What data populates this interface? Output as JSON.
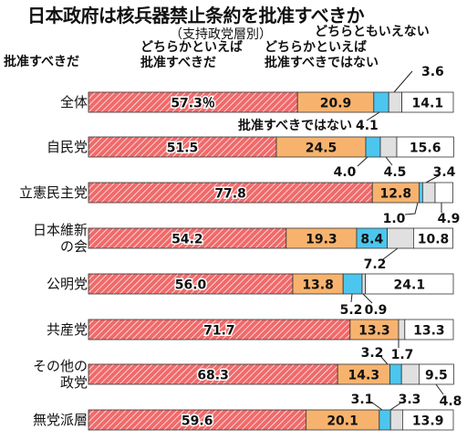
{
  "chart_data": {
    "type": "bar",
    "stacked": true,
    "orientation": "horizontal",
    "title": "日本政府は核兵器禁止条約を批准すべきか",
    "subtitle": "（支持政党層別）",
    "series": [
      {
        "name": "批准すべきだ",
        "color": "#f06a6a",
        "pattern": "hatch",
        "values": [
          57.3,
          51.5,
          77.8,
          54.2,
          56.0,
          71.7,
          68.3,
          59.6
        ],
        "labels": [
          "57.3％",
          "51.5",
          "77.8",
          "54.2",
          "56.0",
          "71.7",
          "68.3",
          "59.6"
        ]
      },
      {
        "name": "どちらかといえば批准すべきだ",
        "color": "#f7b36e",
        "values": [
          20.9,
          24.5,
          12.8,
          19.3,
          13.8,
          13.3,
          14.3,
          20.1
        ],
        "labels": [
          "20.9",
          "24.5",
          "12.8",
          "19.3",
          "13.8",
          "13.3",
          "14.3",
          "20.1"
        ]
      },
      {
        "name": "批准すべきではない",
        "color": "#4cc6ee",
        "values": [
          4.1,
          4.0,
          1.0,
          8.4,
          5.2,
          0.0,
          3.2,
          3.1
        ],
        "labels": [
          "4.1",
          "4.0",
          "1.0",
          "8.4",
          "5.2",
          "",
          "3.2",
          "3.1"
        ]
      },
      {
        "name": "どちらかといえば批准すべきではない",
        "color": "#e0e0e0",
        "values": [
          3.6,
          4.5,
          3.4,
          7.2,
          0.9,
          1.7,
          4.8,
          3.3
        ],
        "labels": [
          "3.6",
          "4.5",
          "3.4",
          "7.2",
          "0.9",
          "1.7",
          "4.8",
          "3.3"
        ]
      },
      {
        "name": "どちらともいえない",
        "color": "#ffffff",
        "values": [
          14.1,
          15.6,
          4.9,
          10.8,
          24.1,
          13.3,
          9.5,
          13.9
        ],
        "labels": [
          "14.1",
          "15.6",
          "4.9",
          "10.8",
          "24.1",
          "13.3",
          "9.5",
          "13.9"
        ]
      }
    ],
    "categories": [
      "全体",
      "自民党",
      "立憲民主党",
      "日本維新の会",
      "公明党",
      "共産党",
      "その他の政党",
      "無党派層"
    ],
    "category_lines": [
      [
        "全体"
      ],
      [
        "自民党"
      ],
      [
        "立憲民主党"
      ],
      [
        "日本維新",
        "の会"
      ],
      [
        "公明党"
      ],
      [
        "共産党"
      ],
      [
        "その他の",
        "政党"
      ],
      [
        "無党派層"
      ]
    ],
    "xlim": [
      0,
      100
    ]
  },
  "legend": {
    "l1": "批准すべきだ",
    "l2a": "どちらかといえば",
    "l2b": "批准すべきだ",
    "l3a": "どちらかといえば",
    "l3b": "批准すべきではない",
    "l4": "どちらともいえない"
  }
}
